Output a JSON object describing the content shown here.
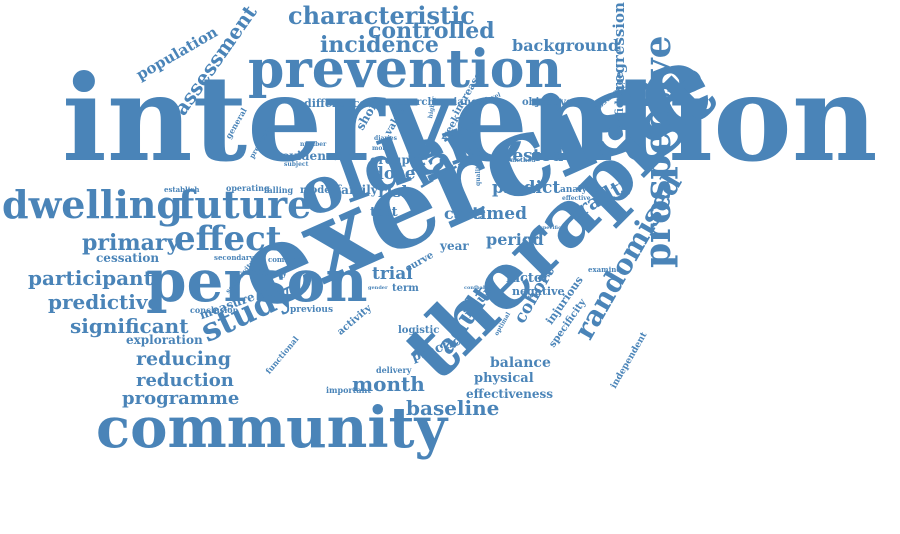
{
  "color": "#4a84b8",
  "words": [
    {
      "id": "intervention",
      "text": "intervention",
      "weight": 100
    },
    {
      "id": "exercise",
      "text": "exercise",
      "weight": 95
    },
    {
      "id": "therapist",
      "text": "therapist",
      "weight": 75
    },
    {
      "id": "older",
      "text": "older",
      "weight": 60
    },
    {
      "id": "community",
      "text": "community",
      "weight": 55
    },
    {
      "id": "person",
      "text": "person",
      "weight": 55
    },
    {
      "id": "prevention",
      "text": "prevention",
      "weight": 50
    },
    {
      "id": "prospective",
      "text": "prospective",
      "weight": 40
    },
    {
      "id": "dwelling",
      "text": "dwelling",
      "weight": 35
    },
    {
      "id": "future",
      "text": "future",
      "weight": 35
    },
    {
      "id": "fall",
      "text": "fall",
      "weight": 35
    },
    {
      "id": "effect",
      "text": "effect",
      "weight": 33
    },
    {
      "id": "study",
      "text": "study",
      "weight": 30
    },
    {
      "id": "randomised",
      "text": "randomised",
      "weight": 28
    },
    {
      "id": "adult",
      "text": "adult",
      "weight": 26
    },
    {
      "id": "characteristic",
      "text": "characteristic",
      "weight": 24
    },
    {
      "id": "incidence",
      "text": "incidence",
      "weight": 24
    },
    {
      "id": "controlled",
      "text": "controlled",
      "weight": 22
    },
    {
      "id": "assessment",
      "text": "assessment",
      "weight": 20
    },
    {
      "id": "primary",
      "text": "primary",
      "weight": 22
    },
    {
      "id": "participant",
      "text": "participant",
      "weight": 20
    },
    {
      "id": "predictive",
      "text": "predictive",
      "weight": 20
    },
    {
      "id": "significant",
      "text": "significant",
      "weight": 20
    },
    {
      "id": "month",
      "text": "month",
      "weight": 20
    },
    {
      "id": "baseline",
      "text": "baseline",
      "weight": 20
    },
    {
      "id": "reducing",
      "text": "reducing",
      "weight": 19
    },
    {
      "id": "reduction",
      "text": "reduction",
      "weight": 18
    },
    {
      "id": "programme",
      "text": "programme",
      "weight": 18
    },
    {
      "id": "frailty",
      "text": "frailty",
      "weight": 20
    },
    {
      "id": "background",
      "text": "background",
      "weight": 16
    },
    {
      "id": "regression",
      "text": "regression",
      "weight": 15
    },
    {
      "id": "population",
      "text": "population",
      "weight": 15
    },
    {
      "id": "cohort",
      "text": "cohort",
      "weight": 17
    },
    {
      "id": "nested",
      "text": "nested",
      "weight": 17
    },
    {
      "id": "dose",
      "text": "dose",
      "weight": 17
    },
    {
      "id": "trial",
      "text": "trial",
      "weight": 17
    },
    {
      "id": "timed",
      "text": "timed",
      "weight": 17
    },
    {
      "id": "predict",
      "text": "predict",
      "weight": 17
    },
    {
      "id": "risk",
      "text": "risk",
      "weight": 16
    },
    {
      "id": "period",
      "text": "period",
      "weight": 16
    },
    {
      "id": "care",
      "text": "care",
      "weight": 16
    },
    {
      "id": "balance",
      "text": "balance",
      "weight": 14
    },
    {
      "id": "physical",
      "text": "physical",
      "weight": 13
    },
    {
      "id": "effectiveness",
      "text": "effectiveness",
      "weight": 12
    },
    {
      "id": "practice",
      "text": "practice",
      "weight": 13
    },
    {
      "id": "injury",
      "text": "injury",
      "weight": 13
    },
    {
      "id": "factor",
      "text": "factor",
      "weight": 13
    },
    {
      "id": "negative",
      "text": "negative",
      "weight": 11
    },
    {
      "id": "confidence",
      "text": "confidence",
      "weight": 11
    },
    {
      "id": "evidence",
      "text": "evidence",
      "weight": 12
    },
    {
      "id": "difference",
      "text": "difference",
      "weight": 11
    },
    {
      "id": "research",
      "text": "research",
      "weight": 10
    },
    {
      "id": "variance",
      "text": "variance",
      "weight": 10
    },
    {
      "id": "objective",
      "text": "objective",
      "weight": 10
    },
    {
      "id": "cessation",
      "text": "cessation",
      "weight": 12
    },
    {
      "id": "exploration",
      "text": "exploration",
      "weight": 12
    },
    {
      "id": "measure",
      "text": "measure",
      "weight": 12
    },
    {
      "id": "group",
      "text": "group",
      "weight": 12
    },
    {
      "id": "test",
      "text": "test",
      "weight": 13
    },
    {
      "id": "year",
      "text": "year",
      "weight": 12
    },
    {
      "id": "model",
      "text": "model",
      "weight": 10
    },
    {
      "id": "family",
      "text": "family",
      "weight": 12
    },
    {
      "id": "history",
      "text": "history",
      "weight": 9
    },
    {
      "id": "previous",
      "text": "previous",
      "weight": 9
    },
    {
      "id": "conclusion",
      "text": "conclusion",
      "weight": 8
    },
    {
      "id": "secondary",
      "text": "secondary",
      "weight": 7
    },
    {
      "id": "common",
      "text": "common",
      "weight": 7
    },
    {
      "id": "logistic",
      "text": "logistic",
      "weight": 10
    },
    {
      "id": "activity",
      "text": "activity",
      "weight": 10
    },
    {
      "id": "injurious",
      "text": "injurious",
      "weight": 11
    },
    {
      "id": "specificity",
      "text": "specificity",
      "weight": 10
    },
    {
      "id": "independent",
      "text": "independent",
      "weight": 9
    },
    {
      "id": "functional",
      "text": "functional",
      "weight": 8
    },
    {
      "id": "important",
      "text": "important",
      "weight": 8
    },
    {
      "id": "delivery",
      "text": "delivery",
      "weight": 8
    },
    {
      "id": "term",
      "text": "term",
      "weight": 10
    },
    {
      "id": "curve",
      "text": "curve",
      "weight": 10
    },
    {
      "id": "falling",
      "text": "falling",
      "weight": 8
    },
    {
      "id": "operating",
      "text": "operating",
      "weight": 8
    },
    {
      "id": "establish",
      "text": "establish",
      "weight": 7
    },
    {
      "id": "general",
      "text": "general",
      "weight": 8
    },
    {
      "id": "predictor",
      "text": "predictor",
      "weight": 7
    },
    {
      "id": "short",
      "text": "short",
      "weight": 12
    },
    {
      "id": "value",
      "text": "value",
      "weight": 10
    },
    {
      "id": "week",
      "text": "week",
      "weight": 10
    },
    {
      "id": "increase",
      "text": "increase",
      "weight": 10
    },
    {
      "id": "analysis",
      "text": "analysis",
      "weight": 9
    },
    {
      "id": "examine",
      "text": "examine",
      "weight": 7
    },
    {
      "id": "assurance",
      "text": "assurance",
      "weight": 8
    },
    {
      "id": "method",
      "text": "method",
      "weight": 6
    },
    {
      "id": "effective",
      "text": "effective",
      "weight": 6
    },
    {
      "id": "sensitivity",
      "text": "sensitivity",
      "weight": 7
    },
    {
      "id": "more",
      "text": "more",
      "weight": 6
    },
    {
      "id": "number",
      "text": "number",
      "weight": 6
    },
    {
      "id": "subject",
      "text": "subject",
      "weight": 6
    },
    {
      "id": "quality",
      "text": "quality",
      "weight": 6
    },
    {
      "id": "multilevel",
      "text": "multilevel",
      "weight": 6
    },
    {
      "id": "higher",
      "text": "higher",
      "weight": 6
    },
    {
      "id": "diaries",
      "text": "diaries",
      "weight": 6
    },
    {
      "id": "optimal",
      "text": "optimal",
      "weight": 6
    },
    {
      "id": "gender",
      "text": "gender",
      "weight": 5
    },
    {
      "id": "point",
      "text": "point",
      "weight": 5
    },
    {
      "id": "specific",
      "text": "specific",
      "weight": 5
    },
    {
      "id": "confbal",
      "text": "confbal",
      "weight": 5
    },
    {
      "id": "ability",
      "text": "ability",
      "weight": 5
    }
  ]
}
